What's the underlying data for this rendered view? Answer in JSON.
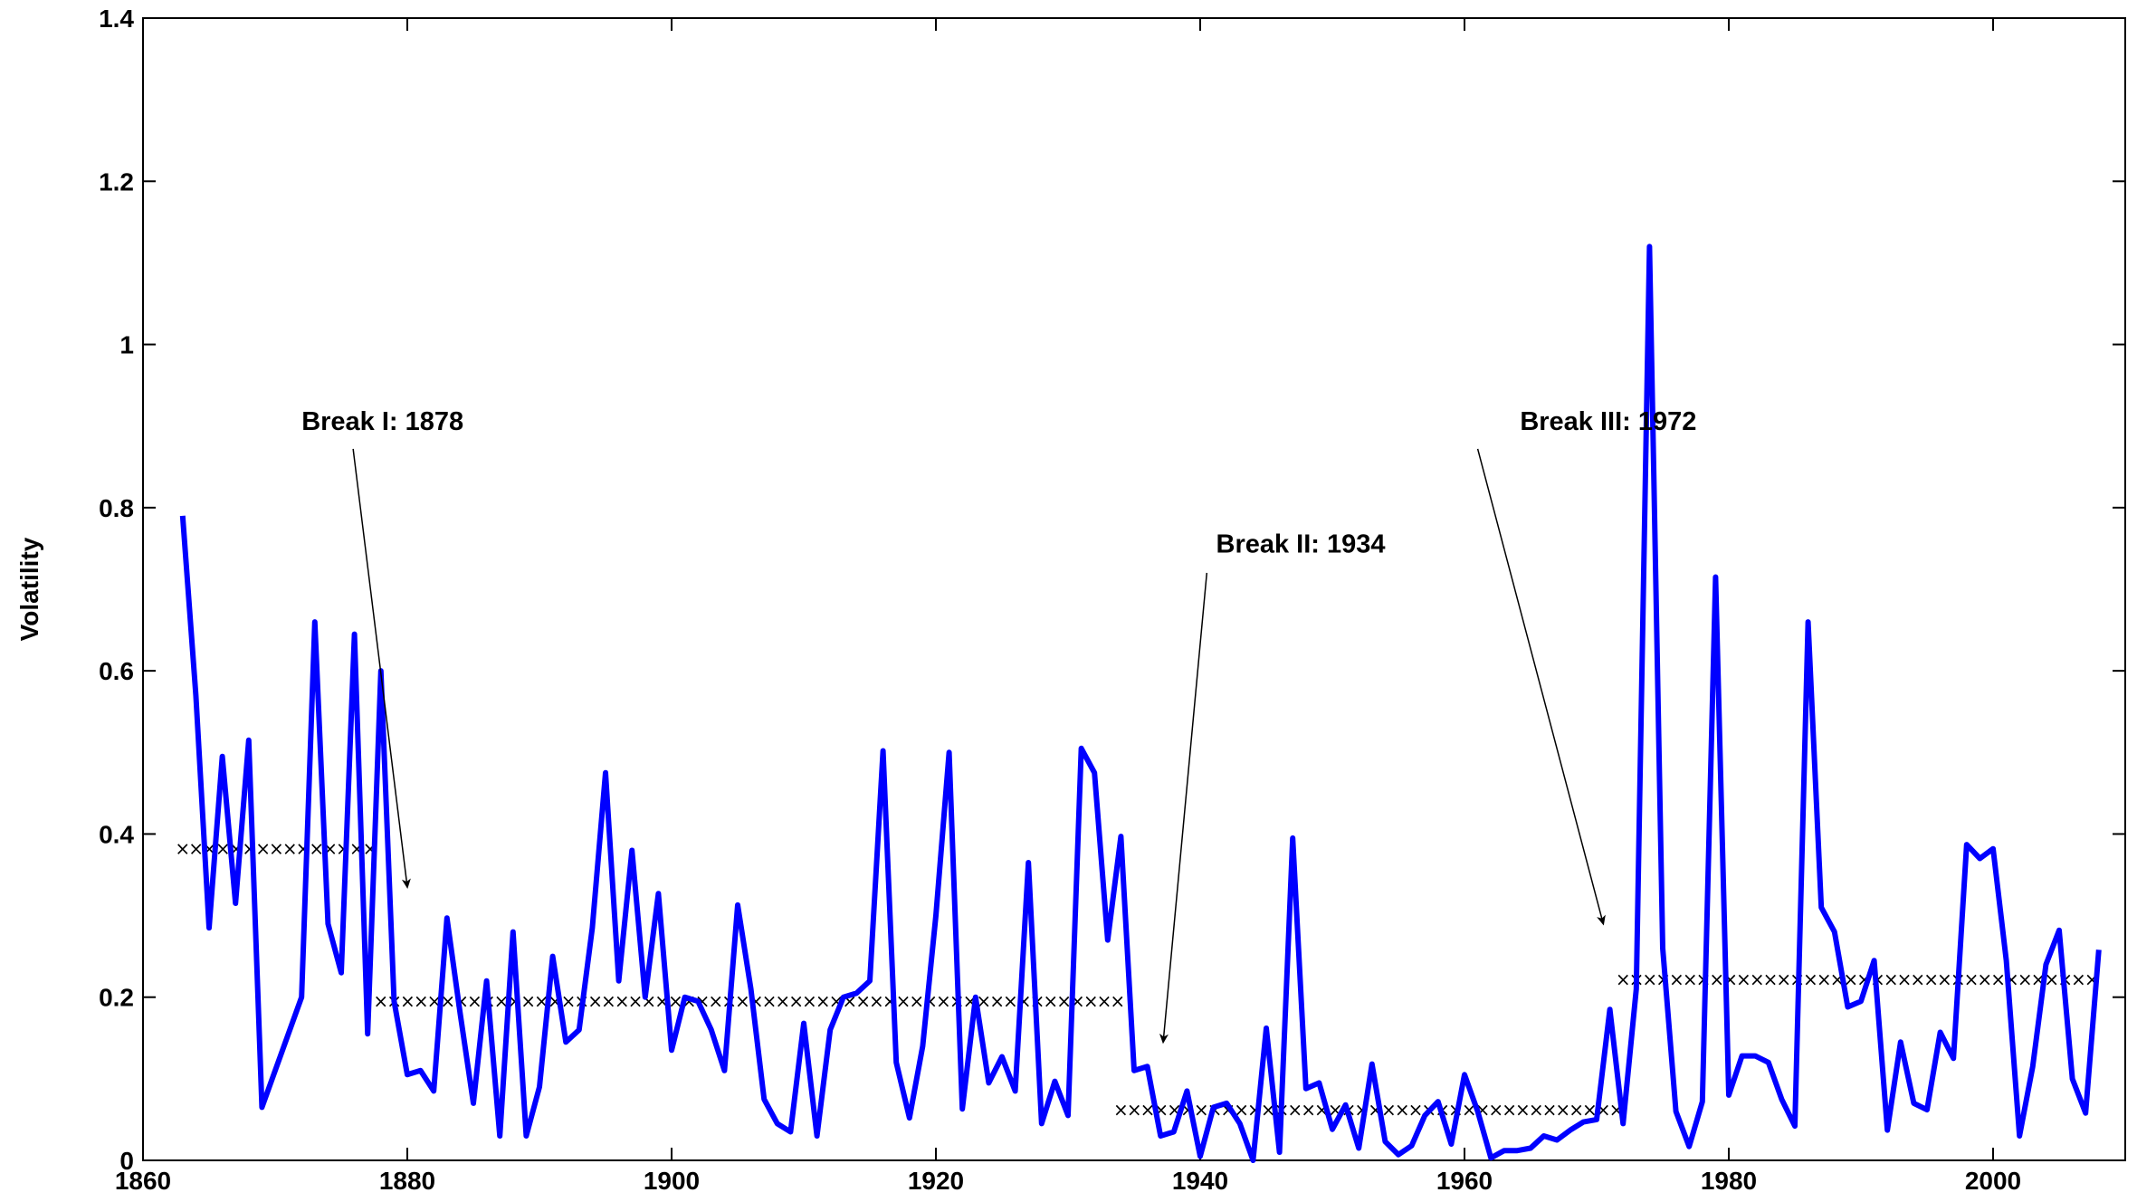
{
  "chart_data": {
    "type": "line",
    "title": "",
    "xlabel": "",
    "ylabel": "Volatility",
    "xlim": [
      1860,
      2010
    ],
    "ylim": [
      0,
      1.4
    ],
    "xticks": [
      1860,
      1880,
      1900,
      1920,
      1940,
      1960,
      1980,
      2000
    ],
    "yticks": [
      0,
      0.2,
      0.4,
      0.6,
      0.8,
      1,
      1.2,
      1.4
    ],
    "ytick_labels": [
      "0",
      "0.2",
      "0.4",
      "0.6",
      "0.8",
      "1",
      "1.2",
      "1.4"
    ],
    "grid": false,
    "line_color": "#0000ff",
    "x": [
      1863,
      1864,
      1865,
      1866,
      1867,
      1868,
      1869,
      1872,
      1873,
      1874,
      1875,
      1876,
      1877,
      1878,
      1879,
      1880,
      1881,
      1882,
      1883,
      1884,
      1885,
      1886,
      1887,
      1888,
      1889,
      1890,
      1891,
      1892,
      1893,
      1894,
      1895,
      1896,
      1897,
      1898,
      1899,
      1900,
      1901,
      1902,
      1903,
      1904,
      1905,
      1906,
      1907,
      1908,
      1909,
      1910,
      1911,
      1912,
      1913,
      1914,
      1915,
      1916,
      1917,
      1918,
      1919,
      1920,
      1921,
      1922,
      1923,
      1924,
      1925,
      1926,
      1927,
      1928,
      1929,
      1930,
      1931,
      1932,
      1933,
      1934,
      1935,
      1936,
      1937,
      1938,
      1939,
      1940,
      1941,
      1942,
      1943,
      1944,
      1945,
      1946,
      1947,
      1948,
      1949,
      1950,
      1951,
      1952,
      1953,
      1954,
      1955,
      1956,
      1957,
      1958,
      1959,
      1960,
      1961,
      1962,
      1963,
      1964,
      1965,
      1966,
      1967,
      1968,
      1969,
      1970,
      1971,
      1972,
      1973,
      1974,
      1975,
      1976,
      1977,
      1978,
      1979,
      1980,
      1981,
      1982,
      1983,
      1984,
      1985,
      1986,
      1987,
      1988,
      1989,
      1990,
      1991,
      1992,
      1993,
      1994,
      1995,
      1996,
      1997,
      1998,
      1999,
      2000,
      2001,
      2002,
      2003,
      2004,
      2005,
      2006,
      2007,
      2008
    ],
    "values": [
      0.79,
      0.57,
      0.285,
      0.495,
      0.315,
      0.515,
      0.065,
      0.2,
      0.66,
      0.29,
      0.23,
      0.645,
      0.155,
      0.6,
      0.195,
      0.105,
      0.11,
      0.085,
      0.297,
      0.18,
      0.07,
      0.22,
      0.03,
      0.28,
      0.03,
      0.09,
      0.25,
      0.145,
      0.16,
      0.285,
      0.475,
      0.22,
      0.38,
      0.2,
      0.327,
      0.135,
      0.2,
      0.195,
      0.16,
      0.11,
      0.313,
      0.21,
      0.075,
      0.045,
      0.035,
      0.168,
      0.03,
      0.16,
      0.2,
      0.205,
      0.22,
      0.502,
      0.12,
      0.052,
      0.14,
      0.3,
      0.5,
      0.063,
      0.2,
      0.095,
      0.127,
      0.085,
      0.365,
      0.045,
      0.097,
      0.055,
      0.505,
      0.475,
      0.27,
      0.397,
      0.11,
      0.115,
      0.03,
      0.035,
      0.085,
      0.005,
      0.065,
      0.07,
      0.045,
      0.0,
      0.162,
      0.01,
      0.395,
      0.088,
      0.095,
      0.038,
      0.068,
      0.015,
      0.118,
      0.023,
      0.007,
      0.018,
      0.055,
      0.072,
      0.02,
      0.105,
      0.06,
      0.003,
      0.012,
      0.012,
      0.015,
      0.03,
      0.025,
      0.037,
      0.047,
      0.05,
      0.185,
      0.045,
      0.21,
      1.12,
      0.26,
      0.06,
      0.017,
      0.072,
      0.715,
      0.08,
      0.128,
      0.128,
      0.12,
      0.075,
      0.042,
      0.66,
      0.31,
      0.28,
      0.188,
      0.195,
      0.245,
      0.037,
      0.145,
      0.07,
      0.062,
      0.157,
      0.125,
      0.387,
      0.37,
      0.382,
      0.245,
      0.03,
      0.115,
      0.24,
      0.282,
      0.1,
      0.058,
      0.258
    ],
    "regime_means": [
      {
        "start": 1863,
        "end": 1878,
        "value": 0.382
      },
      {
        "start": 1878,
        "end": 1934,
        "value": 0.195
      },
      {
        "start": 1934,
        "end": 1972,
        "value": 0.062
      },
      {
        "start": 1972,
        "end": 2008,
        "value": 0.222
      }
    ],
    "regime_marker": "×",
    "annotations": [
      {
        "text": "Break I: 1878",
        "label_x": 1872,
        "label_y": 0.895,
        "arrow_from": [
          1875.9,
          0.872
        ],
        "arrow_to": [
          1880.0,
          0.335
        ]
      },
      {
        "text": "Break II: 1934",
        "label_x": 1941.2,
        "label_y": 0.745,
        "arrow_from": [
          1940.5,
          0.72
        ],
        "arrow_to": [
          1937.2,
          0.145
        ]
      },
      {
        "text": "Break III: 1972",
        "label_x": 1941.2,
        "label_y": 0.895,
        "label_x_": 1964.2,
        "arrow_from": [
          1961.0,
          0.872
        ],
        "arrow_to": [
          1970.5,
          0.29
        ]
      }
    ]
  }
}
